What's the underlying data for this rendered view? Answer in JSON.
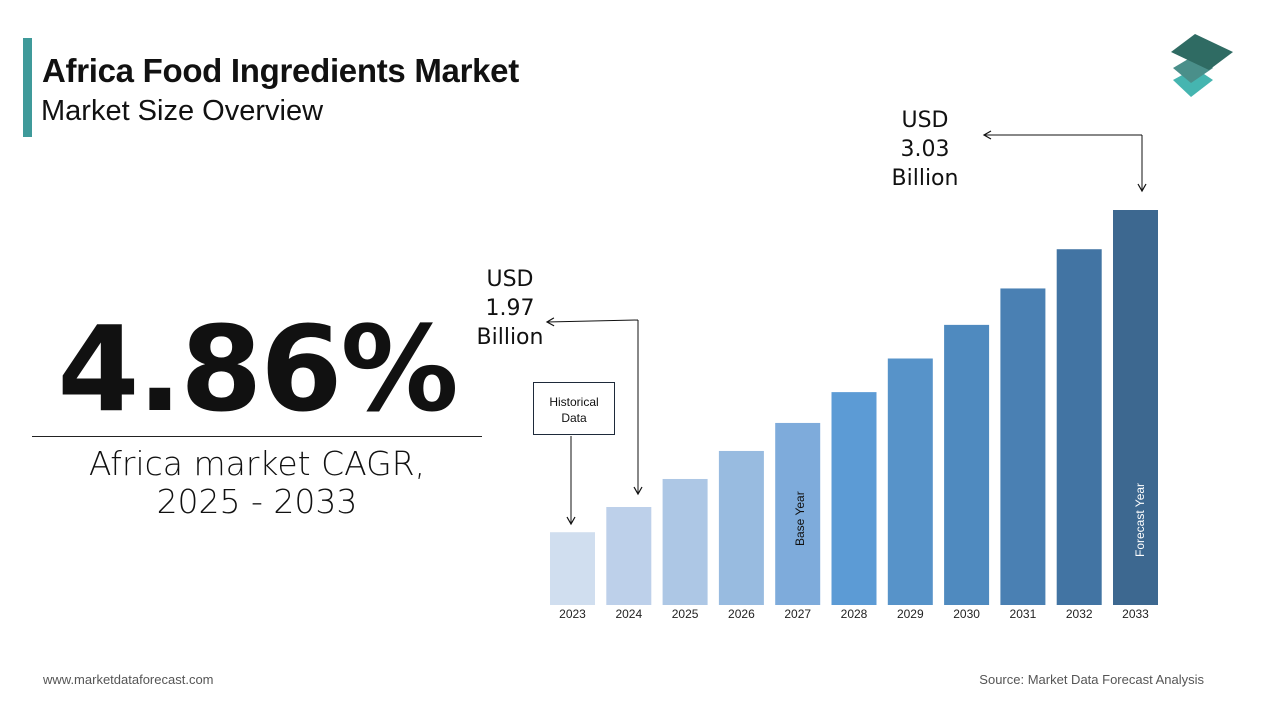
{
  "header": {
    "title": "Africa Food Ingredients Market",
    "subtitle": "Market Size Overview"
  },
  "cagr": {
    "value": "4.86%",
    "label_line1": "Africa market CAGR,",
    "label_line2": "2025 - 2033"
  },
  "annotations": {
    "start": {
      "line1": "USD",
      "line2": "1.97",
      "line3": "Billion"
    },
    "end": {
      "line1": "USD",
      "line2": "3.03",
      "line3": "Billion"
    },
    "historical": {
      "line1": "Historical",
      "line2": "Data"
    },
    "base_year": "Base Year",
    "forecast_year": "Forecast Year"
  },
  "footer": {
    "website": "www.marketdataforecast.com",
    "source": "Source: Market Data Forecast Analysis"
  },
  "colors": {
    "accent": "#3f9a9a",
    "logo": [
      "#2f6b63",
      "#4a8f8a",
      "#45b5b0"
    ]
  },
  "chart_data": {
    "type": "bar",
    "categories": [
      "2023",
      "2024",
      "2025",
      "2026",
      "2027",
      "2028",
      "2029",
      "2030",
      "2031",
      "2032",
      "2033"
    ],
    "values": [
      1.88,
      1.97,
      2.07,
      2.17,
      2.27,
      2.38,
      2.5,
      2.62,
      2.75,
      2.89,
      3.03
    ],
    "unit": "USD Billion",
    "colors": [
      "#d0deef",
      "#bdd0ea",
      "#adc7e5",
      "#98bbe0",
      "#7eabdb",
      "#5c9bd5",
      "#5793c9",
      "#4f8abf",
      "#4a80b3",
      "#4274a3",
      "#3d6890"
    ],
    "grid": false,
    "xlabel": "",
    "ylabel": ""
  }
}
